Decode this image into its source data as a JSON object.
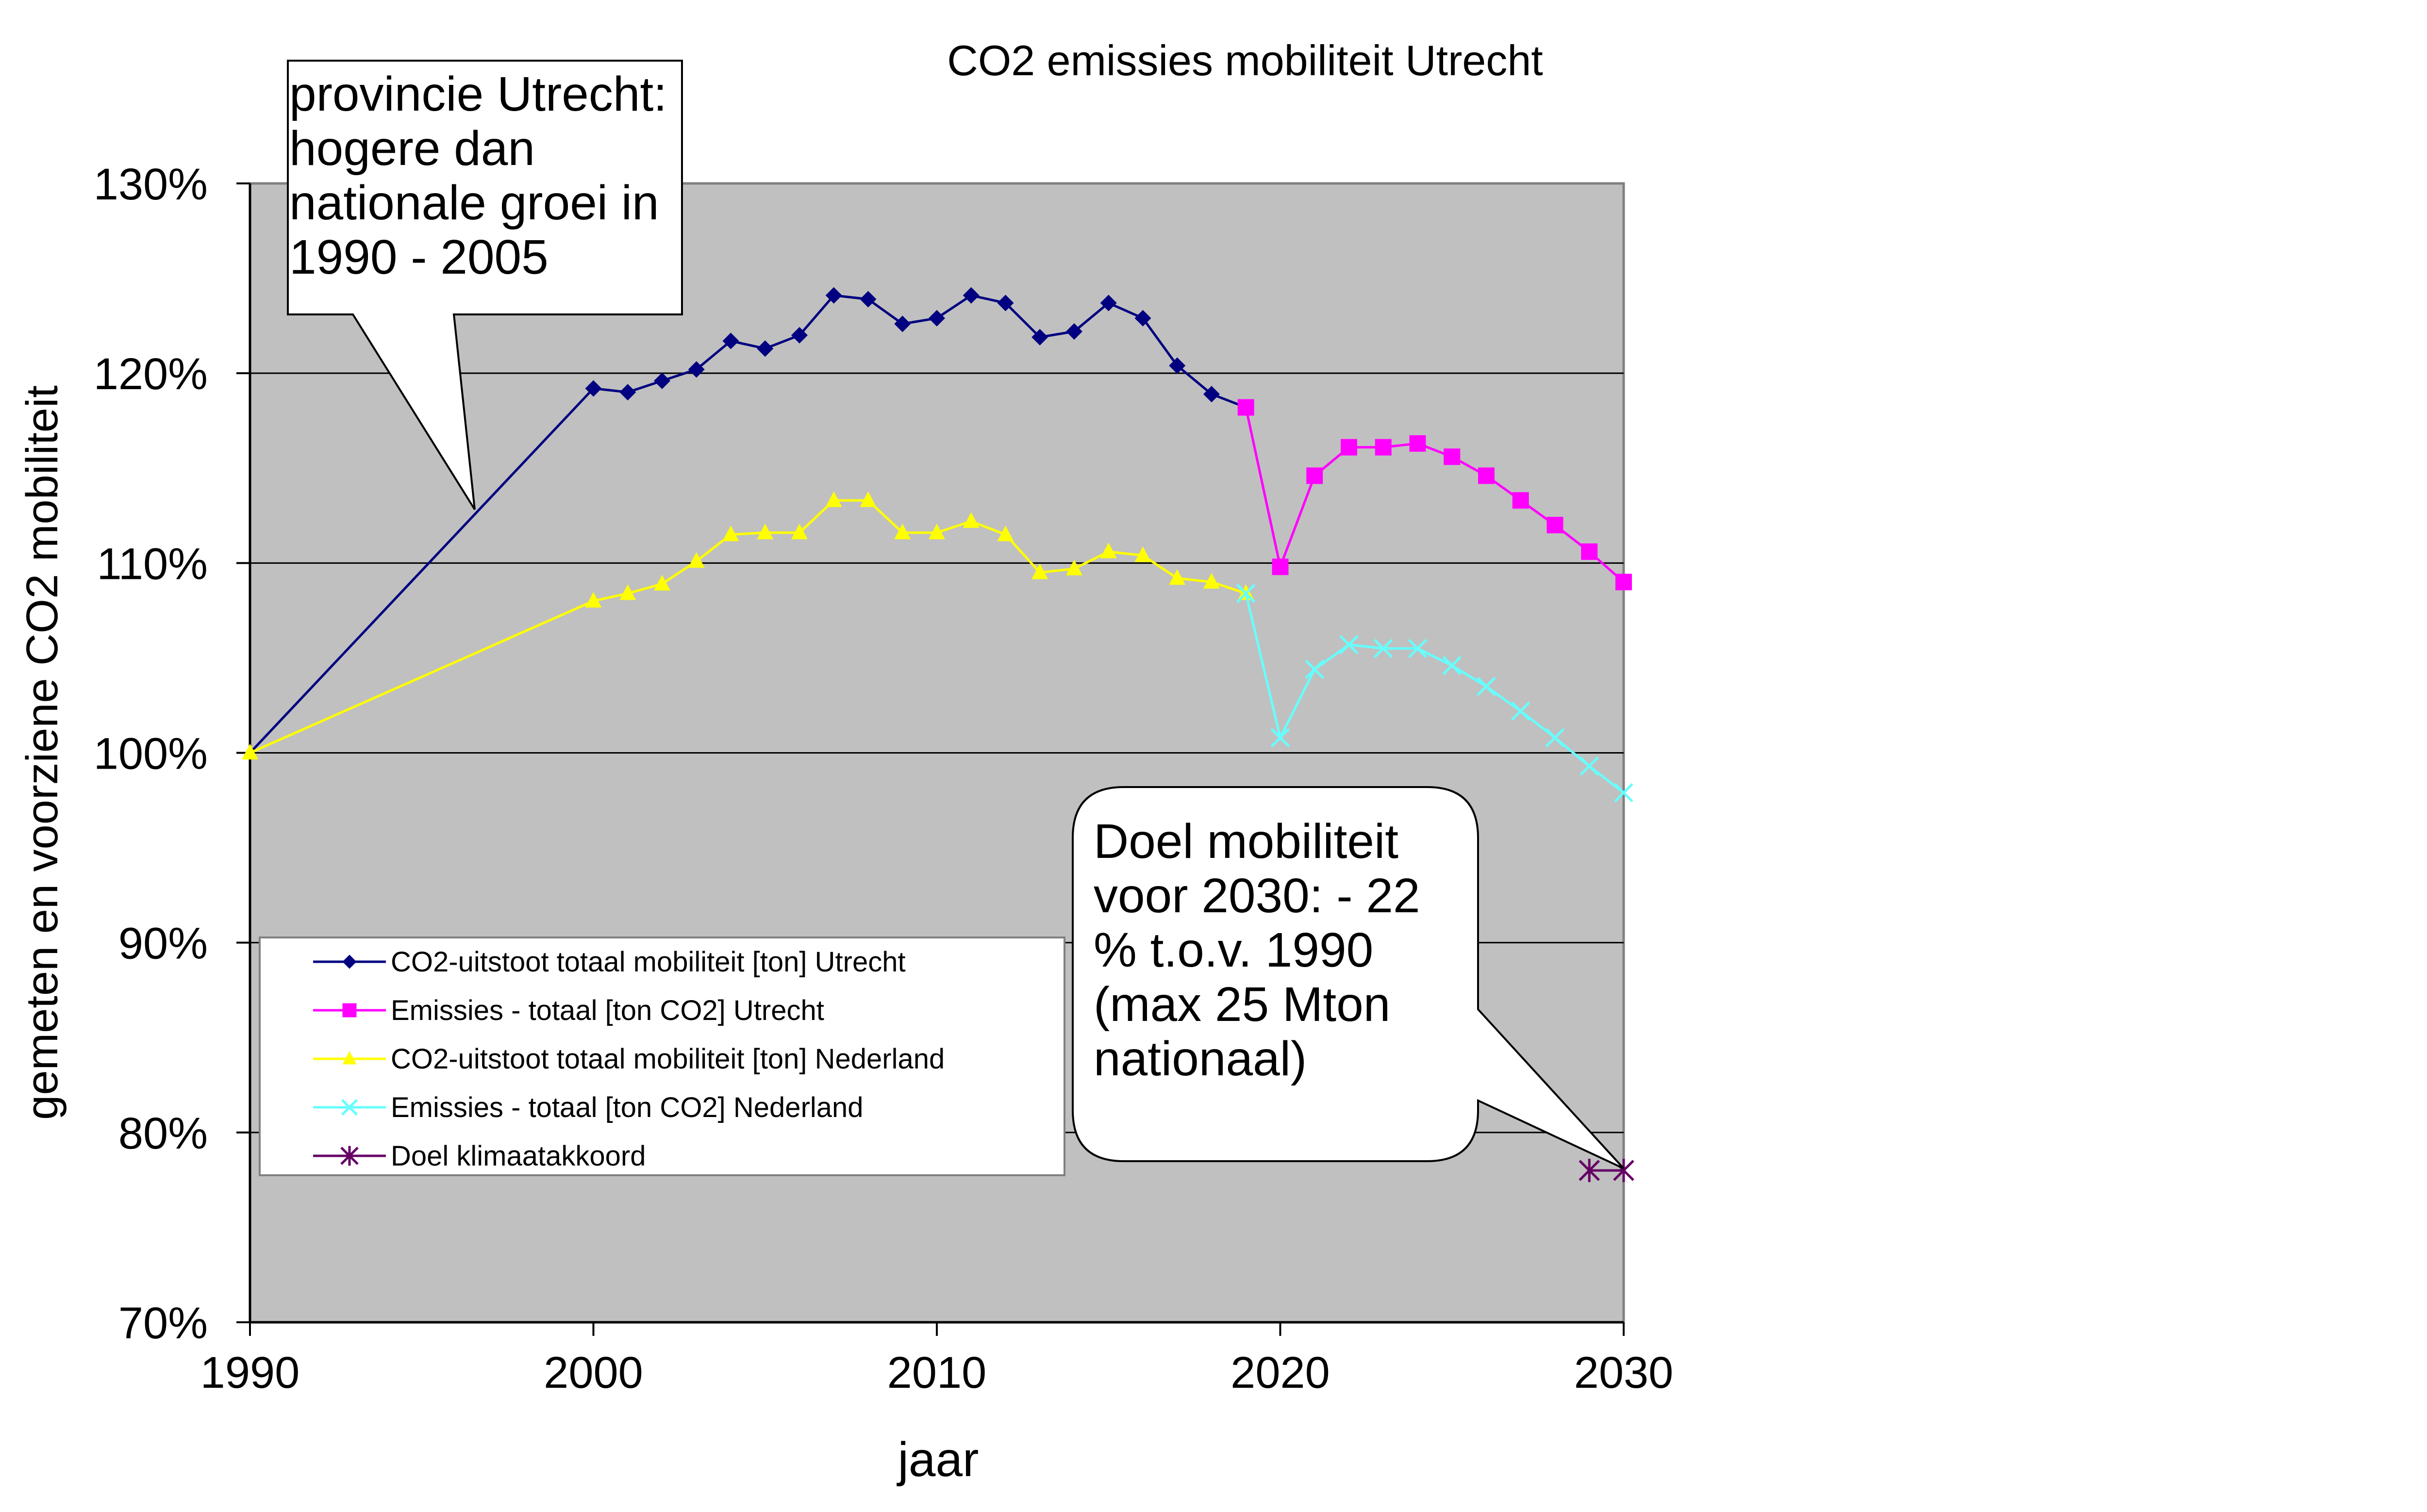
{
  "chart_data": {
    "type": "line",
    "title": "CO2 emissies mobiliteit Utrecht",
    "xlabel": "jaar",
    "ylabel": "gemeten en voorziene CO2 mobiliteit",
    "xlim": [
      1990,
      2030
    ],
    "ylim": [
      70,
      130
    ],
    "x_ticks": [
      "1990",
      "2000",
      "2010",
      "2020",
      "2030"
    ],
    "y_ticks": [
      "70%",
      "80%",
      "90%",
      "100%",
      "110%",
      "120%",
      "130%"
    ],
    "plot_background": "#c0c0c0",
    "grid": "horizontal",
    "legend_position": "lower-left",
    "series": [
      {
        "name": "CO2-uitstoot totaal mobiliteit [ton] Utrecht",
        "color": "#000080",
        "marker": "diamond",
        "points": [
          [
            1990,
            100
          ],
          [
            2000,
            119.2
          ],
          [
            2001,
            119.0
          ],
          [
            2002,
            119.6
          ],
          [
            2003,
            120.2
          ],
          [
            2004,
            121.7
          ],
          [
            2005,
            121.3
          ],
          [
            2006,
            122.0
          ],
          [
            2007,
            124.1
          ],
          [
            2008,
            123.9
          ],
          [
            2009,
            122.6
          ],
          [
            2010,
            122.9
          ],
          [
            2011,
            124.1
          ],
          [
            2012,
            123.7
          ],
          [
            2013,
            121.9
          ],
          [
            2014,
            122.2
          ],
          [
            2015,
            123.7
          ],
          [
            2016,
            122.9
          ],
          [
            2017,
            120.4
          ],
          [
            2018,
            118.9
          ],
          [
            2019,
            118.2
          ]
        ]
      },
      {
        "name": "Emissies - totaal [ton CO2] Utrecht",
        "color": "#ff00ff",
        "marker": "square",
        "points": [
          [
            2019,
            118.2
          ],
          [
            2020,
            109.8
          ],
          [
            2021,
            114.6
          ],
          [
            2022,
            116.1
          ],
          [
            2023,
            116.1
          ],
          [
            2024,
            116.3
          ],
          [
            2025,
            115.6
          ],
          [
            2026,
            114.6
          ],
          [
            2027,
            113.3
          ],
          [
            2028,
            112.0
          ],
          [
            2029,
            110.6
          ],
          [
            2030,
            109.0
          ]
        ]
      },
      {
        "name": "CO2-uitstoot totaal mobiliteit [ton] Nederland",
        "color": "#ffff00",
        "marker": "triangle",
        "points": [
          [
            1990,
            100
          ],
          [
            2000,
            108.0
          ],
          [
            2001,
            108.4
          ],
          [
            2002,
            108.9
          ],
          [
            2003,
            110.1
          ],
          [
            2004,
            111.5
          ],
          [
            2005,
            111.6
          ],
          [
            2006,
            111.6
          ],
          [
            2007,
            113.3
          ],
          [
            2008,
            113.3
          ],
          [
            2009,
            111.6
          ],
          [
            2010,
            111.6
          ],
          [
            2011,
            112.2
          ],
          [
            2012,
            111.5
          ],
          [
            2013,
            109.5
          ],
          [
            2014,
            109.7
          ],
          [
            2015,
            110.6
          ],
          [
            2016,
            110.4
          ],
          [
            2017,
            109.2
          ],
          [
            2018,
            109.0
          ],
          [
            2019,
            108.4
          ]
        ]
      },
      {
        "name": "Emissies - totaal [ton CO2] Nederland",
        "color": "#66ffff",
        "marker": "x",
        "points": [
          [
            2019,
            108.4
          ],
          [
            2020,
            100.8
          ],
          [
            2021,
            104.4
          ],
          [
            2022,
            105.7
          ],
          [
            2023,
            105.5
          ],
          [
            2024,
            105.5
          ],
          [
            2025,
            104.6
          ],
          [
            2026,
            103.5
          ],
          [
            2027,
            102.2
          ],
          [
            2028,
            100.8
          ],
          [
            2029,
            99.3
          ],
          [
            2030,
            97.9
          ]
        ]
      },
      {
        "name": "Doel klimaatakkoord",
        "color": "#660066",
        "marker": "star",
        "points": [
          [
            2029,
            78
          ],
          [
            2030,
            78
          ]
        ]
      }
    ],
    "annotations": [
      {
        "lines": [
          "provincie Utrecht:",
          "hogere dan",
          "nationale groei in",
          "1990 - 2005"
        ]
      },
      {
        "lines": [
          "Doel mobiliteit",
          "voor 2030: - 22",
          "% t.o.v. 1990",
          "(max 25 Mton",
          "nationaal)"
        ]
      }
    ]
  }
}
